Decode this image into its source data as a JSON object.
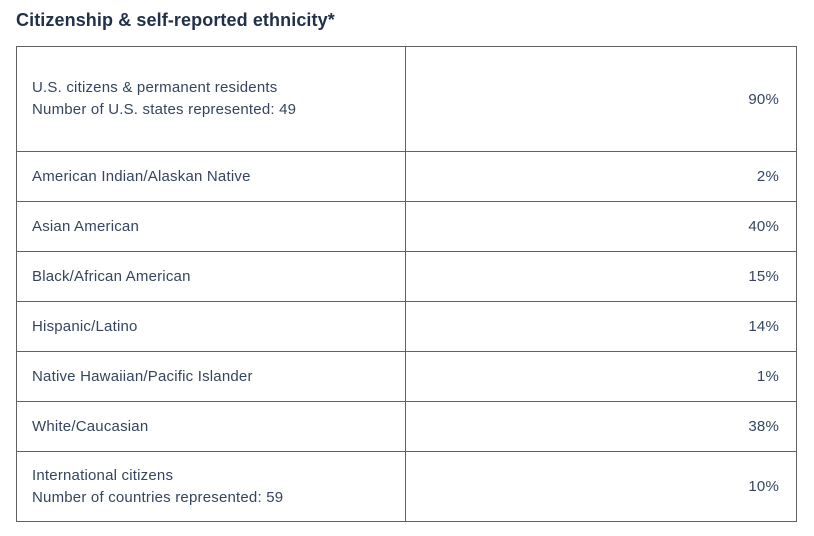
{
  "page": {
    "title": "Citizenship & self-reported ethnicity*"
  },
  "colors": {
    "title_text": "#22304a",
    "body_text": "#35455f",
    "border": "#616161",
    "background": "#ffffff"
  },
  "table": {
    "rows": [
      {
        "label": "U.S. citizens & permanent residents",
        "sublabel": "Number of U.S. states represented: 49",
        "value": "90%"
      },
      {
        "label": "American Indian/Alaskan Native",
        "value": "2%"
      },
      {
        "label": "Asian American",
        "value": "40%"
      },
      {
        "label": "Black/African American",
        "value": "15%"
      },
      {
        "label": "Hispanic/Latino",
        "value": "14%"
      },
      {
        "label": "Native Hawaiian/Pacific Islander",
        "value": "1%"
      },
      {
        "label": "White/Caucasian",
        "value": "38%"
      },
      {
        "label": "International citizens",
        "sublabel": "Number of countries represented: 59",
        "value": "10%"
      }
    ]
  },
  "chart_data": {
    "type": "table",
    "title": "Citizenship & self-reported ethnicity*",
    "categories": [
      "U.S. citizens & permanent residents",
      "American Indian/Alaskan Native",
      "Asian American",
      "Black/African American",
      "Hispanic/Latino",
      "Native Hawaiian/Pacific Islander",
      "White/Caucasian",
      "International citizens"
    ],
    "values": [
      90,
      2,
      40,
      15,
      14,
      1,
      38,
      10
    ],
    "value_unit": "%",
    "annotations": [
      "Number of U.S. states represented: 49",
      "Number of countries represented: 59"
    ]
  }
}
